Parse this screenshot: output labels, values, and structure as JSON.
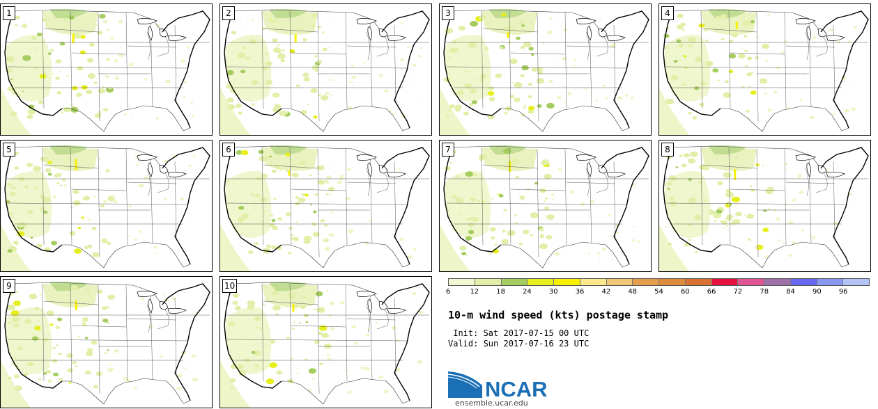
{
  "panels": [
    {
      "label": "1"
    },
    {
      "label": "2"
    },
    {
      "label": "3"
    },
    {
      "label": "4"
    },
    {
      "label": "5"
    },
    {
      "label": "6"
    },
    {
      "label": "7"
    },
    {
      "label": "8"
    },
    {
      "label": "9"
    },
    {
      "label": "10"
    }
  ],
  "colorbar": {
    "ticks": [
      "6",
      "12",
      "18",
      "24",
      "30",
      "36",
      "42",
      "48",
      "54",
      "60",
      "66",
      "72",
      "78",
      "84",
      "90",
      "96"
    ],
    "colors": [
      "#f2f7d4",
      "#e1efa9",
      "#a5cc5e",
      "#e6ef1e",
      "#f7f000",
      "#fce98c",
      "#f0c775",
      "#e59e4e",
      "#dd8a3b",
      "#d97132",
      "#e6103f",
      "#e25595",
      "#9e72a8",
      "#6669ee",
      "#8898f3",
      "#b3c3f5"
    ]
  },
  "title": "10-m wind speed (kts) postage stamp",
  "init": " Init: Sat 2017-07-15 00 UTC",
  "valid": "Valid: Sun 2017-07-16 23 UTC",
  "logo": {
    "text": "NCAR",
    "color": "#1b6fb5"
  },
  "url": "ensemble.ucar.edu"
}
